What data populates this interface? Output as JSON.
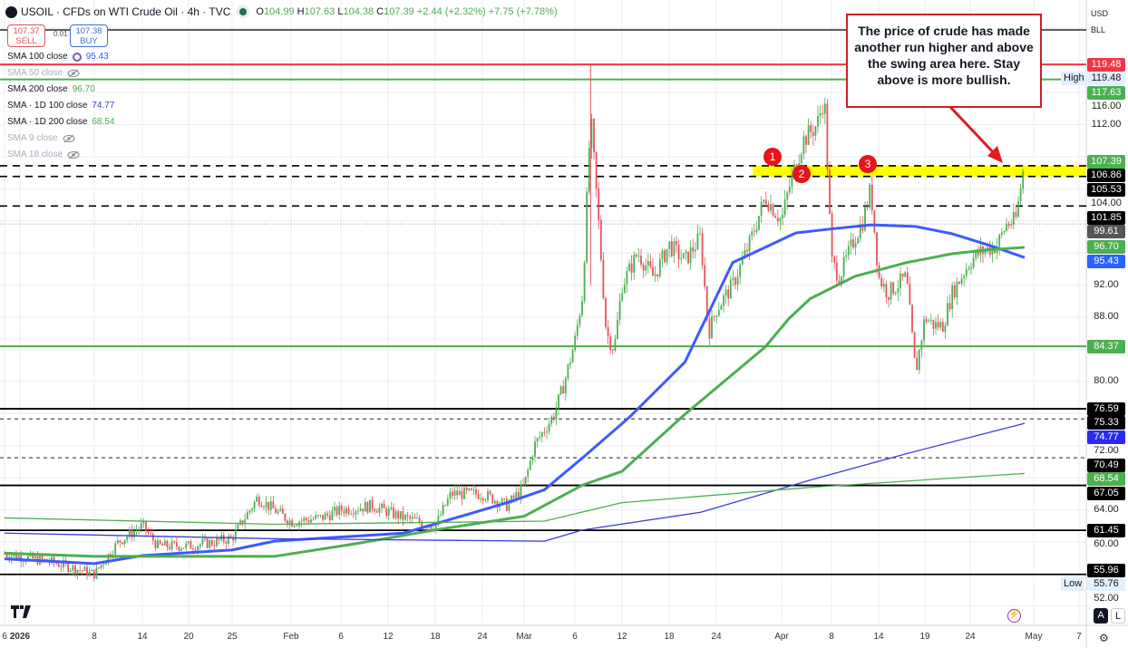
{
  "header": {
    "symbol": "USOIL",
    "title": "USOIL · CFDs on WTI Crude Oil · 4h · TVC",
    "open_label": "O",
    "open": "104.99",
    "high_label": "H",
    "high": "107.63",
    "low_label": "L",
    "low": "104.38",
    "close_label": "C",
    "close": "107.39",
    "change": "+2.44 (+2.32%)",
    "change2": "+7.75 (+7.78%)"
  },
  "trade": {
    "sell_price": "107.37",
    "sell_label": "SELL",
    "spread": "0.01",
    "buy_price": "107.38",
    "buy_label": "BUY"
  },
  "legend": [
    {
      "label": "SMA 100 close",
      "value": "95.43",
      "color": "#3d5afe",
      "visible": true
    },
    {
      "label": "SMA 50 close",
      "value": "",
      "visible": false
    },
    {
      "label": "SMA 200 close",
      "value": "96.70",
      "color": "#4caf50",
      "visible": true
    },
    {
      "label": "SMA · 1D 100 close",
      "value": "74.77",
      "color": "#3d3ddb",
      "visible": true
    },
    {
      "label": "SMA · 1D 200 close",
      "value": "68.54",
      "color": "#4caf50",
      "visible": true
    },
    {
      "label": "SMA 9 close",
      "value": "",
      "visible": false
    },
    {
      "label": "SMA 18 close",
      "value": "",
      "visible": false
    }
  ],
  "axis": {
    "currency": "USD",
    "unit": "BLL",
    "auto_label": "A",
    "log_label": "L",
    "high_label": "High",
    "low_label": "Low"
  },
  "annotation": {
    "text": "The price of crude has made another run higher and above the swing area here. Stay above is more bullish.",
    "markers": [
      "1",
      "2",
      "3"
    ]
  },
  "chart_data": {
    "type": "candlestick",
    "title": "USOIL · CFDs on WTI Crude Oil · 4h · TVC",
    "ylim": [
      52,
      124
    ],
    "grid": true,
    "y_ticks": [
      "116.00",
      "112.00",
      "104.00",
      "92.00",
      "88.00",
      "80.00",
      "72.00",
      "64.00",
      "60.00",
      "52.00"
    ],
    "x_ticks": [
      [
        "2025-12-30",
        "6"
      ],
      [
        "2026-01-01",
        "2026"
      ],
      [
        "2026-01-08",
        "8"
      ],
      [
        "2026-01-14",
        "14"
      ],
      [
        "2026-01-20",
        "20"
      ],
      [
        "2026-01-25",
        "25"
      ],
      [
        "2026-02-01",
        "Feb"
      ],
      [
        "2026-02-06",
        "6"
      ],
      [
        "2026-02-12",
        "12"
      ],
      [
        "2026-02-18",
        "18"
      ],
      [
        "2026-02-24",
        "24"
      ],
      [
        "2026-03-01",
        "Mar"
      ],
      [
        "2026-03-06",
        "6"
      ],
      [
        "2026-03-12",
        "12"
      ],
      [
        "2026-03-18",
        "18"
      ],
      [
        "2026-03-24",
        "24"
      ],
      [
        "2026-04-01",
        "Apr"
      ],
      [
        "2026-04-08",
        "8"
      ],
      [
        "2026-04-14",
        "14"
      ],
      [
        "2026-04-19",
        "19"
      ],
      [
        "2026-04-24",
        "24"
      ],
      [
        "2026-05-01",
        "May"
      ],
      [
        "2026-05-07",
        "7"
      ]
    ],
    "session_high": 119.48,
    "session_low": 55.76,
    "close_path": [
      [
        "2025-12-30",
        58.5
      ],
      [
        "2026-01-04",
        57.5
      ],
      [
        "2026-01-08",
        56.0
      ],
      [
        "2026-01-11",
        60.0
      ],
      [
        "2026-01-14",
        62.0
      ],
      [
        "2026-01-16",
        59.5
      ],
      [
        "2026-01-20",
        59.5
      ],
      [
        "2026-01-23",
        60.0
      ],
      [
        "2026-01-25",
        60.5
      ],
      [
        "2026-01-28",
        65.5
      ],
      [
        "2026-02-01",
        62.5
      ],
      [
        "2026-02-04",
        63.0
      ],
      [
        "2026-02-06",
        64.0
      ],
      [
        "2026-02-10",
        64.5
      ],
      [
        "2026-02-14",
        63.0
      ],
      [
        "2026-02-18",
        62.0
      ],
      [
        "2026-02-20",
        66.0
      ],
      [
        "2026-02-24",
        66.0
      ],
      [
        "2026-02-27",
        64.5
      ],
      [
        "2026-03-01",
        67.0
      ],
      [
        "2026-03-02",
        72.0
      ],
      [
        "2026-03-04",
        76.0
      ],
      [
        "2026-03-05",
        80.0
      ],
      [
        "2026-03-06",
        85.0
      ],
      [
        "2026-03-07",
        91.0
      ],
      [
        "2026-03-08",
        113.0
      ],
      [
        "2026-03-09",
        100.0
      ],
      [
        "2026-03-10",
        86.0
      ],
      [
        "2026-03-11",
        84.0
      ],
      [
        "2026-03-12",
        92.0
      ],
      [
        "2026-03-14",
        96.0
      ],
      [
        "2026-03-16",
        93.0
      ],
      [
        "2026-03-18",
        97.0
      ],
      [
        "2026-03-20",
        95.0
      ],
      [
        "2026-03-22",
        98.0
      ],
      [
        "2026-03-23",
        86.0
      ],
      [
        "2026-03-24",
        89.0
      ],
      [
        "2026-03-26",
        92.0
      ],
      [
        "2026-03-28",
        97.0
      ],
      [
        "2026-03-30",
        103.0
      ],
      [
        "2026-04-01",
        100.0
      ],
      [
        "2026-04-02",
        104.0
      ],
      [
        "2026-04-04",
        110.0
      ],
      [
        "2026-04-06",
        112.0
      ],
      [
        "2026-04-07",
        115.5
      ],
      [
        "2026-04-08",
        95.0
      ],
      [
        "2026-04-09",
        93.0
      ],
      [
        "2026-04-11",
        98.0
      ],
      [
        "2026-04-12",
        100.0
      ],
      [
        "2026-04-13",
        104.0
      ],
      [
        "2026-04-14",
        93.0
      ],
      [
        "2026-04-15",
        91.0
      ],
      [
        "2026-04-17",
        93.0
      ],
      [
        "2026-04-18",
        81.0
      ],
      [
        "2026-04-19",
        88.0
      ],
      [
        "2026-04-20",
        87.0
      ],
      [
        "2026-04-21",
        87.0
      ],
      [
        "2026-04-22",
        91.0
      ],
      [
        "2026-04-24",
        95.0
      ],
      [
        "2026-04-25",
        96.0
      ],
      [
        "2026-04-27",
        97.0
      ],
      [
        "2026-04-28",
        99.6
      ],
      [
        "2026-04-29",
        100.0
      ],
      [
        "2026-04-30",
        107.39
      ]
    ],
    "series": [
      {
        "name": "SMA 100 close",
        "color": "#3d5afe",
        "width": 3,
        "values": [
          [
            "2025-12-30",
            57.9
          ],
          [
            "2026-01-08",
            57.3
          ],
          [
            "2026-01-14",
            58.3
          ],
          [
            "2026-01-25",
            59.0
          ],
          [
            "2026-01-30",
            60.1
          ],
          [
            "2026-02-14",
            61.1
          ],
          [
            "2026-02-27",
            64.9
          ],
          [
            "2026-03-03",
            66.5
          ],
          [
            "2026-03-07",
            70.5
          ],
          [
            "2026-03-13",
            75.6
          ],
          [
            "2026-03-20",
            82.4
          ],
          [
            "2026-03-26",
            94.8
          ],
          [
            "2026-04-03",
            98.5
          ],
          [
            "2026-04-08",
            99.0
          ],
          [
            "2026-04-13",
            99.5
          ],
          [
            "2026-04-18",
            99.3
          ],
          [
            "2026-04-22",
            98.4
          ],
          [
            "2026-04-26",
            97.0
          ],
          [
            "2026-04-30",
            95.43
          ]
        ]
      },
      {
        "name": "SMA 200 close",
        "color": "#4caf50",
        "width": 3,
        "values": [
          [
            "2025-12-30",
            58.6
          ],
          [
            "2026-01-08",
            58.2
          ],
          [
            "2026-01-20",
            58.2
          ],
          [
            "2026-01-30",
            58.2
          ],
          [
            "2026-02-08",
            59.8
          ],
          [
            "2026-02-18",
            61.5
          ],
          [
            "2026-03-01",
            63.2
          ],
          [
            "2026-03-07",
            67.1
          ],
          [
            "2026-03-12",
            68.8
          ],
          [
            "2026-03-20",
            75.9
          ],
          [
            "2026-03-30",
            84.3
          ],
          [
            "2026-04-02",
            87.8
          ],
          [
            "2026-04-05",
            90.3
          ],
          [
            "2026-04-11",
            93.1
          ],
          [
            "2026-04-17",
            94.8
          ],
          [
            "2026-04-22",
            95.9
          ],
          [
            "2026-04-26",
            96.4
          ],
          [
            "2026-04-30",
            96.7
          ]
        ]
      },
      {
        "name": "SMA · 1D 100 close",
        "color": "#3d3ddb",
        "width": 1.3,
        "values": [
          [
            "2025-12-30",
            61.1
          ],
          [
            "2026-01-30",
            60.4
          ],
          [
            "2026-03-03",
            60.1
          ],
          [
            "2026-03-07",
            61.5
          ],
          [
            "2026-03-22",
            63.7
          ],
          [
            "2026-04-05",
            67.7
          ],
          [
            "2026-04-17",
            71.0
          ],
          [
            "2026-04-30",
            74.77
          ]
        ]
      },
      {
        "name": "SMA · 1D 200 close",
        "color": "#4caf50",
        "width": 1.3,
        "values": [
          [
            "2025-12-30",
            63.0
          ],
          [
            "2026-01-30",
            62.2
          ],
          [
            "2026-03-03",
            62.6
          ],
          [
            "2026-03-12",
            64.9
          ],
          [
            "2026-04-05",
            66.8
          ],
          [
            "2026-04-30",
            68.54
          ]
        ]
      }
    ],
    "levels": [
      {
        "value": 119.48,
        "label": "119.48",
        "color": "#f23645",
        "style": "solid"
      },
      {
        "value": 117.63,
        "label": "117.63",
        "color": "#4caf50",
        "style": "solid"
      },
      {
        "value": 106.86,
        "label": "106.86",
        "color": "#000000",
        "style": "dashed"
      },
      {
        "value": 105.53,
        "label": "105.53",
        "color": "#000000",
        "style": "dashed"
      },
      {
        "value": 101.85,
        "label": "101.85",
        "color": "#000000",
        "style": "dashed"
      },
      {
        "value": 84.37,
        "label": "84.37",
        "color": "#4caf50",
        "style": "solid"
      },
      {
        "value": 76.59,
        "label": "76.59",
        "color": "#000000",
        "style": "solid"
      },
      {
        "value": 75.33,
        "label": "75.33",
        "color": "#000000",
        "style": "dashed-thin"
      },
      {
        "value": 70.49,
        "label": "70.49",
        "color": "#000000",
        "style": "dashed-thin"
      },
      {
        "value": 67.05,
        "label": "67.05",
        "color": "#000000",
        "style": "solid"
      },
      {
        "value": 61.45,
        "label": "61.45",
        "color": "#000000",
        "style": "solid"
      },
      {
        "value": 55.96,
        "label": "55.96",
        "color": "#000000",
        "style": "solid"
      }
    ],
    "swing_area": [
      105.53,
      106.86
    ],
    "price_labels": [
      {
        "value": 119.48,
        "label": "119.48",
        "bg": "#f23645",
        "fg": "#fff"
      },
      {
        "value": 117.63,
        "label": "117.63",
        "bg": "#4caf50",
        "fg": "#fff"
      },
      {
        "value": 107.39,
        "label": "107.39",
        "bg": "#4caf50",
        "fg": "#fff"
      },
      {
        "value": 106.86,
        "label": "106.86",
        "bg": "#000",
        "fg": "#fff"
      },
      {
        "value": 105.53,
        "label": "105.53",
        "bg": "#000",
        "fg": "#fff"
      },
      {
        "value": 101.85,
        "label": "101.85",
        "bg": "#000",
        "fg": "#fff"
      },
      {
        "value": 99.61,
        "label": "99.61",
        "bg": "#555",
        "fg": "#fff"
      },
      {
        "value": 96.7,
        "label": "96.70",
        "bg": "#4caf50",
        "fg": "#fff"
      },
      {
        "value": 95.43,
        "label": "95.43",
        "bg": "#2962ff",
        "fg": "#fff"
      },
      {
        "value": 84.37,
        "label": "84.37",
        "bg": "#4caf50",
        "fg": "#fff"
      },
      {
        "value": 76.59,
        "label": "76.59",
        "bg": "#000",
        "fg": "#fff"
      },
      {
        "value": 75.33,
        "label": "75.33",
        "bg": "#000",
        "fg": "#fff"
      },
      {
        "value": 74.77,
        "label": "74.77",
        "bg": "#2b2bf0",
        "fg": "#fff"
      },
      {
        "value": 70.49,
        "label": "70.49",
        "bg": "#000",
        "fg": "#fff"
      },
      {
        "value": 68.54,
        "label": "68.54",
        "bg": "#4caf50",
        "fg": "#fff"
      },
      {
        "value": 67.05,
        "label": "67.05",
        "bg": "#000",
        "fg": "#fff"
      },
      {
        "value": 61.45,
        "label": "61.45",
        "bg": "#000",
        "fg": "#fff"
      },
      {
        "value": 55.96,
        "label": "55.96",
        "bg": "#000",
        "fg": "#fff"
      }
    ],
    "high_value": "119.48",
    "low_value": "55.76",
    "up_color": "#4caf50",
    "down_color": "#e5535c"
  }
}
